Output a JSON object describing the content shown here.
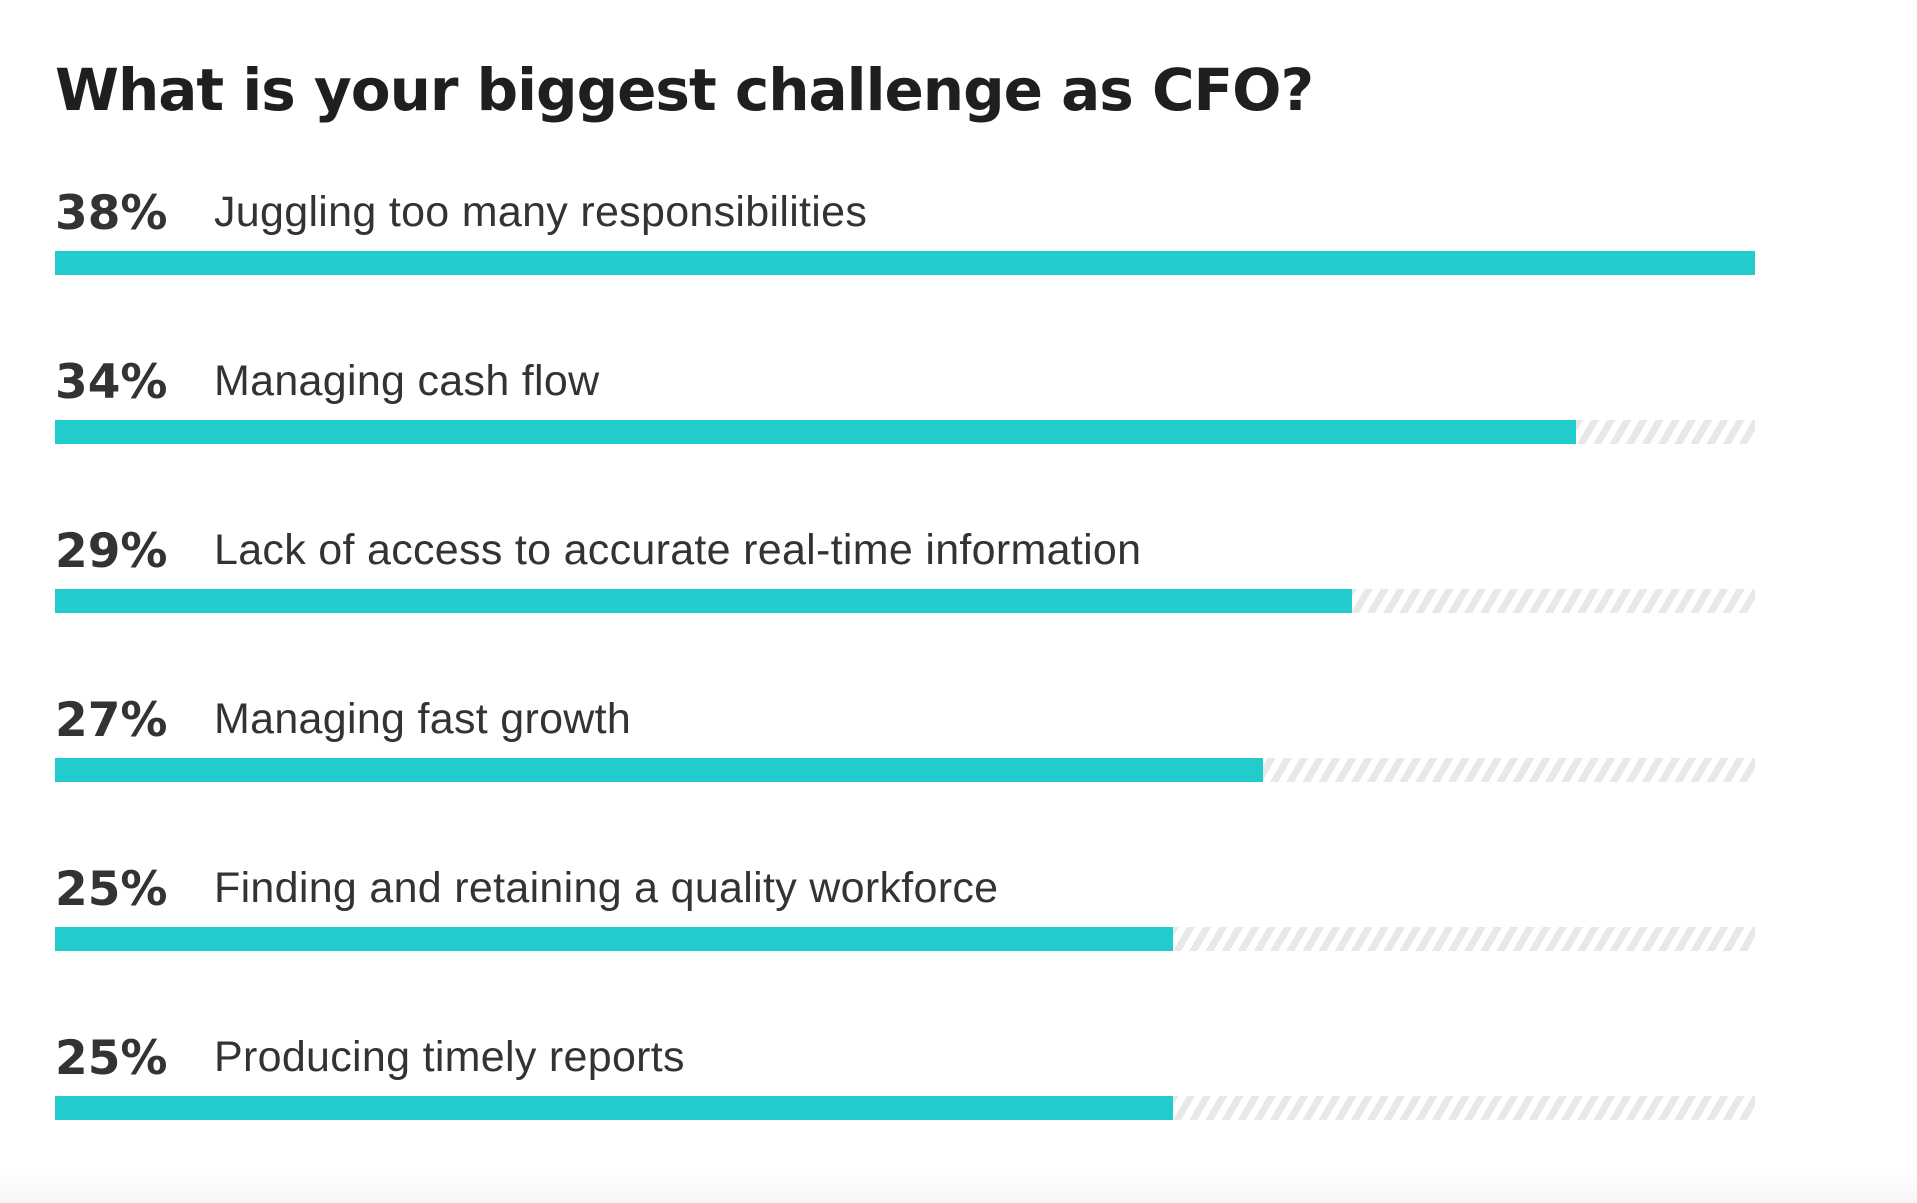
{
  "chart_data": {
    "type": "bar",
    "orientation": "horizontal",
    "title": "What is your biggest challenge as CFO?",
    "bar_color": "#22cccc",
    "track_color": "#e8e8e8",
    "max_value": 38,
    "unit": "%",
    "bars": [
      {
        "value": 38,
        "value_label": "38%",
        "label": "Juggling too many responsibilities"
      },
      {
        "value": 34,
        "value_label": "34%",
        "label": "Managing cash flow"
      },
      {
        "value": 29,
        "value_label": "29%",
        "label": "Lack of access to accurate real-time information"
      },
      {
        "value": 27,
        "value_label": "27%",
        "label": "Managing fast growth"
      },
      {
        "value": 25,
        "value_label": "25%",
        "label": "Finding and retaining a quality workforce"
      },
      {
        "value": 25,
        "value_label": "25%",
        "label": "Producing timely reports"
      }
    ]
  }
}
